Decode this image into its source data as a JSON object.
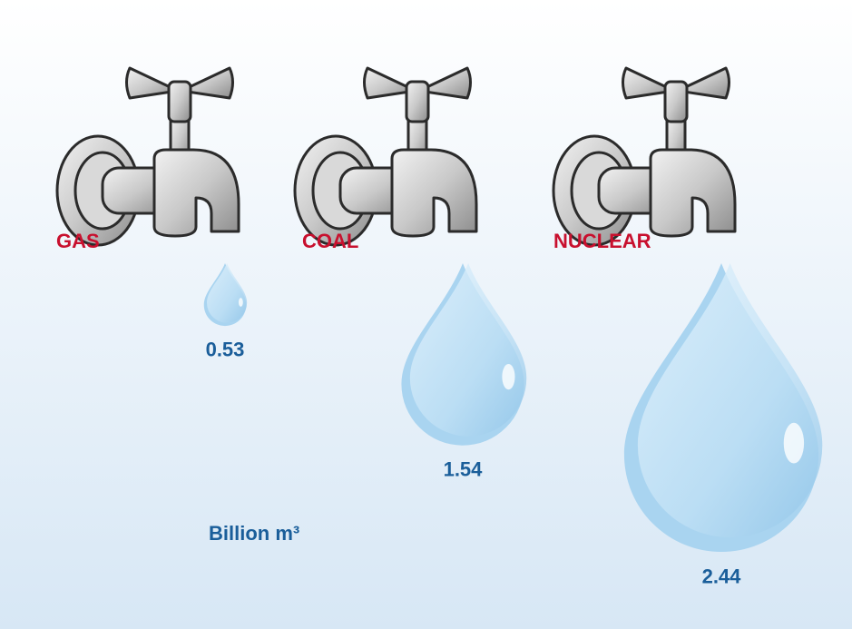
{
  "chart_data": {
    "type": "drop",
    "categories": [
      "GAS",
      "COAL",
      "NUCLEAR"
    ],
    "values": [
      0.53,
      1.54,
      2.44
    ],
    "unit_label": "Billion m³",
    "color": "#a9d4f0"
  }
}
